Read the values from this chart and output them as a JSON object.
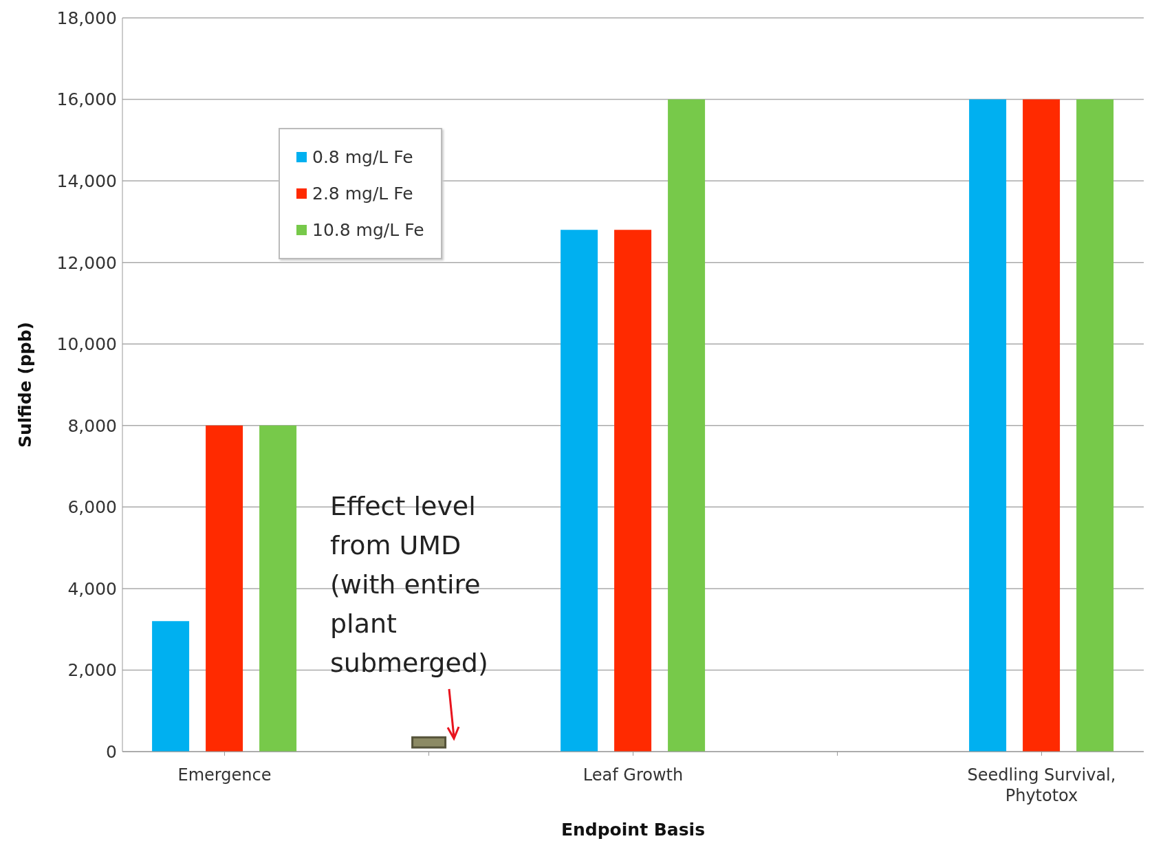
{
  "chart_data": {
    "type": "bar",
    "xlabel": "Endpoint Basis",
    "ylabel": "Sulfide (ppb)",
    "categories": [
      "Emergence",
      null,
      "Leaf Growth",
      null,
      "Seedling Survival, Phytotox"
    ],
    "series": [
      {
        "name": "0.8 mg/L Fe",
        "color": "#00b0f0",
        "values": [
          3200,
          null,
          12800,
          null,
          16000
        ]
      },
      {
        "name": "2.8 mg/L Fe",
        "color": "#ff2a00",
        "values": [
          8000,
          null,
          12800,
          null,
          16000
        ]
      },
      {
        "name": "10.8 mg/L Fe",
        "color": "#77c94a",
        "values": [
          8000,
          null,
          16000,
          null,
          16000
        ]
      },
      {
        "color": "#8c8a64",
        "base": [
          null,
          100,
          null,
          null,
          null
        ],
        "values": [
          null,
          250,
          null,
          null,
          null
        ]
      }
    ],
    "annotations": [
      "Effect level from UMD (with entire plant submerged)"
    ],
    "ylim": [
      0,
      18000
    ],
    "yticks": [
      0,
      {
        "value": 2000,
        "label": "2,000"
      },
      {
        "value": 4000,
        "label": "4,000"
      },
      {
        "value": 6000,
        "label": "6,000"
      },
      {
        "value": 8000,
        "label": "8,000"
      },
      {
        "value": 10000,
        "label": "10,000"
      },
      {
        "value": 12000,
        "label": "12,000"
      },
      {
        "value": 14000,
        "label": "14,000"
      },
      {
        "value": 16000,
        "label": "16,000"
      },
      {
        "value": 18000,
        "label": "18,000"
      }
    ],
    "grid": "y",
    "legend": "top left"
  }
}
